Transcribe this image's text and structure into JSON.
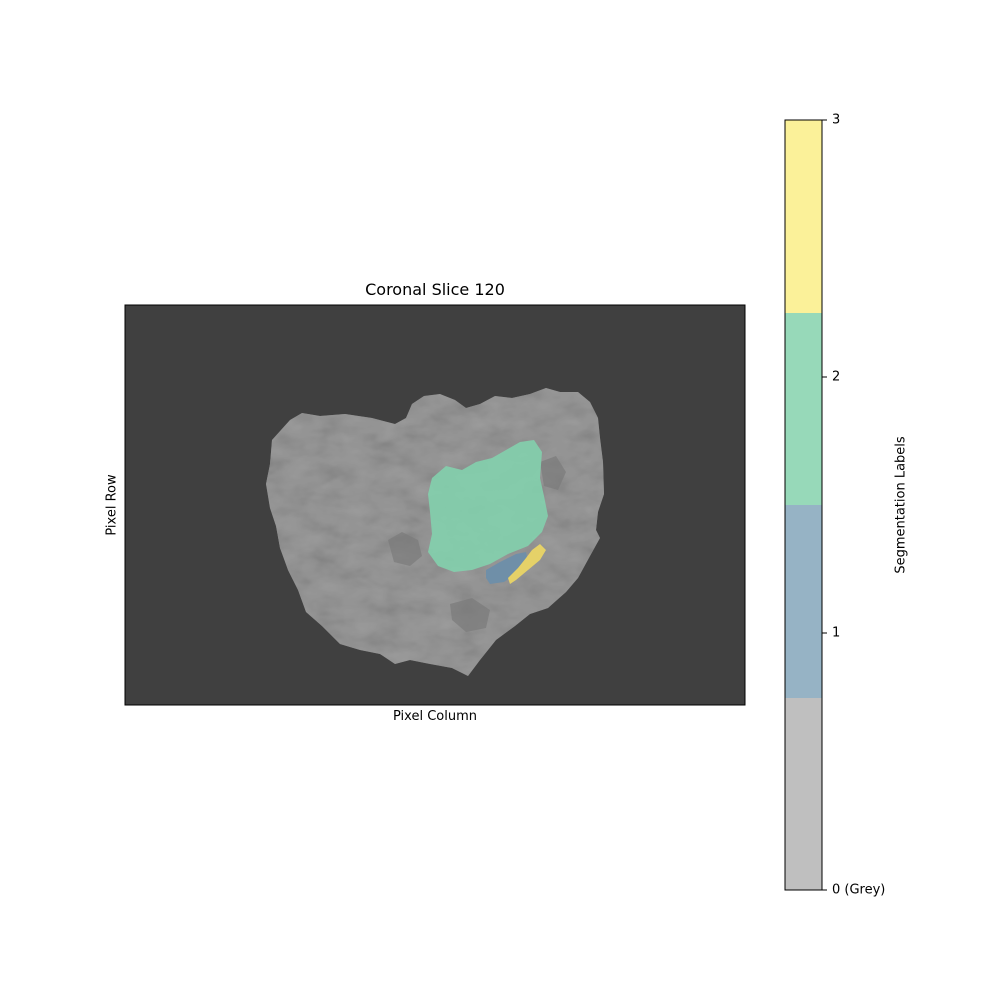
{
  "figure": {
    "title": "Coronal Slice 120",
    "xlabel": "Pixel Column",
    "ylabel": "Pixel Row"
  },
  "colorbar": {
    "label": "Segmentation Labels",
    "ticks": [
      {
        "value": 0,
        "label": "0 (Grey)"
      },
      {
        "value": 1,
        "label": "1"
      },
      {
        "value": 2,
        "label": "2"
      },
      {
        "value": 3,
        "label": "3"
      }
    ],
    "range": [
      0,
      3
    ],
    "segments": [
      {
        "label": 0,
        "color": "#bfbfbf"
      },
      {
        "label": 1,
        "color": "#96b3c5"
      },
      {
        "label": 2,
        "color": "#97d9b9"
      },
      {
        "label": 3,
        "color": "#fbf199"
      }
    ]
  },
  "colors": {
    "background": "#404040",
    "tissue": "#9c9c9c",
    "label_1": "#6f8fa8",
    "label_2": "#83d0ad",
    "label_3": "#e5d168"
  }
}
